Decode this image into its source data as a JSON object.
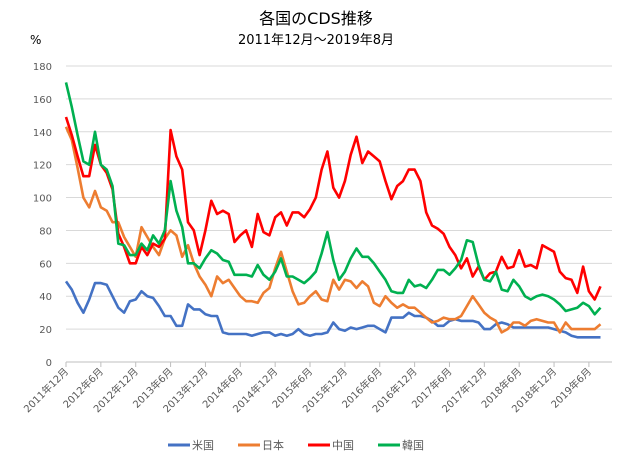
{
  "chart_data": {
    "type": "line",
    "title": "各国のCDS推移",
    "subtitle": "2011年12月～2019年8月",
    "ylabel": "%",
    "xlabel": "",
    "ylim": [
      0,
      180
    ],
    "yticks": [
      0,
      20,
      40,
      60,
      80,
      100,
      120,
      140,
      160,
      180
    ],
    "grid": true,
    "legend_position": "bottom",
    "x_start": "2011年12月",
    "x_end": "2019年8月",
    "x_step": "monthly",
    "xtick_labels": [
      "2011年12月",
      "2012年6月",
      "2012年12月",
      "2013年6月",
      "2013年12月",
      "2014年6月",
      "2014年12月",
      "2015年6月",
      "2015年12月",
      "2016年6月",
      "2016年12月",
      "2017年6月",
      "2017年12月",
      "2018年6月",
      "2018年12月",
      "2019年6月"
    ],
    "series": [
      {
        "name": "米国",
        "color": "#4472C4",
        "values": [
          49,
          44,
          36,
          30,
          38,
          48,
          48,
          47,
          40,
          33,
          30,
          37,
          38,
          43,
          40,
          39,
          34,
          28,
          28,
          22,
          22,
          35,
          32,
          32,
          29,
          28,
          28,
          18,
          17,
          17,
          17,
          17,
          16,
          17,
          18,
          18,
          16,
          17,
          16,
          17,
          20,
          17,
          16,
          17,
          17,
          18,
          24,
          20,
          19,
          21,
          20,
          21,
          22,
          22,
          20,
          18,
          27,
          27,
          27,
          30,
          28,
          28,
          27,
          25,
          22,
          22,
          25,
          26,
          25,
          25,
          25,
          24,
          20,
          20,
          23,
          24,
          23,
          21,
          21,
          21,
          21,
          21,
          21,
          21,
          20,
          19,
          18,
          16,
          15,
          15,
          15,
          15,
          15
        ]
      },
      {
        "name": "日本",
        "color": "#ED7D31",
        "values": [
          143,
          135,
          118,
          100,
          94,
          104,
          94,
          92,
          85,
          85,
          76,
          70,
          64,
          82,
          76,
          70,
          65,
          75,
          80,
          77,
          64,
          71,
          60,
          52,
          47,
          40,
          52,
          48,
          50,
          45,
          40,
          37,
          37,
          36,
          42,
          45,
          57,
          67,
          55,
          43,
          35,
          36,
          40,
          43,
          38,
          37,
          50,
          44,
          50,
          49,
          45,
          49,
          46,
          36,
          34,
          40,
          36,
          33,
          35,
          33,
          33,
          30,
          27,
          24,
          25,
          27,
          26,
          26,
          28,
          34,
          40,
          35,
          30,
          27,
          25,
          18,
          20,
          24,
          24,
          22,
          25,
          26,
          25,
          24,
          24,
          18,
          24,
          20,
          20,
          20,
          20,
          20,
          23
        ]
      },
      {
        "name": "中国",
        "color": "#FF0000",
        "values": [
          149,
          138,
          125,
          113,
          113,
          132,
          120,
          115,
          105,
          78,
          70,
          60,
          60,
          70,
          65,
          72,
          70,
          75,
          141,
          125,
          117,
          85,
          80,
          65,
          80,
          98,
          90,
          92,
          90,
          73,
          77,
          80,
          70,
          90,
          79,
          77,
          88,
          91,
          83,
          91,
          91,
          88,
          93,
          100,
          117,
          128,
          106,
          100,
          110,
          126,
          137,
          121,
          128,
          125,
          122,
          110,
          99,
          107,
          110,
          117,
          117,
          110,
          91,
          83,
          81,
          78,
          70,
          65,
          57,
          63,
          52,
          58,
          50,
          54,
          55,
          64,
          57,
          58,
          68,
          58,
          59,
          57,
          71,
          69,
          67,
          55,
          51,
          50,
          42,
          58,
          43,
          38,
          46
        ]
      },
      {
        "name": "韓国",
        "color": "#00B050",
        "values": [
          170,
          155,
          138,
          122,
          120,
          140,
          120,
          117,
          107,
          72,
          71,
          65,
          65,
          72,
          68,
          77,
          72,
          80,
          110,
          92,
          82,
          60,
          60,
          57,
          63,
          68,
          66,
          62,
          61,
          53,
          53,
          53,
          52,
          59,
          53,
          50,
          55,
          63,
          52,
          52,
          50,
          48,
          51,
          55,
          66,
          79,
          62,
          50,
          55,
          63,
          69,
          64,
          64,
          60,
          55,
          50,
          43,
          42,
          42,
          50,
          46,
          47,
          45,
          50,
          56,
          56,
          53,
          57,
          62,
          74,
          73,
          59,
          50,
          49,
          55,
          44,
          43,
          50,
          46,
          40,
          38,
          40,
          41,
          40,
          38,
          35,
          31,
          32,
          33,
          36,
          34,
          29,
          33
        ]
      }
    ]
  }
}
